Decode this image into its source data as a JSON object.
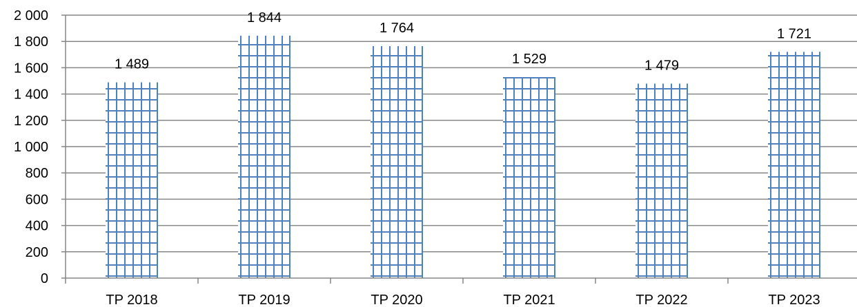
{
  "chart_data": {
    "type": "bar",
    "title": "",
    "xlabel": "",
    "ylabel": "",
    "categories": [
      "TP 2018",
      "TP 2019",
      "TP 2020",
      "TP 2021",
      "TP 2022",
      "TP 2023"
    ],
    "values": [
      1489,
      1844,
      1764,
      1529,
      1479,
      1721
    ],
    "data_labels": [
      "1 489",
      "1 844",
      "1 764",
      "1 529",
      "1 479",
      "1 721"
    ],
    "ylim": [
      0,
      2000
    ],
    "y_ticks": [
      {
        "value": 0,
        "label": "0"
      },
      {
        "value": 200,
        "label": "200"
      },
      {
        "value": 400,
        "label": "400"
      },
      {
        "value": 600,
        "label": "600"
      },
      {
        "value": 800,
        "label": "800"
      },
      {
        "value": 1000,
        "label": "1 000"
      },
      {
        "value": 1200,
        "label": "1 200"
      },
      {
        "value": 1400,
        "label": "1 400"
      },
      {
        "value": 1600,
        "label": "1 600"
      },
      {
        "value": 1800,
        "label": "1 800"
      },
      {
        "value": 2000,
        "label": "2 000"
      }
    ],
    "grid": true,
    "legend": "none",
    "colors": {
      "bar_pattern": "#4f81bd",
      "gridline": "#868686",
      "axis": "#868686",
      "text": "#000000"
    }
  }
}
